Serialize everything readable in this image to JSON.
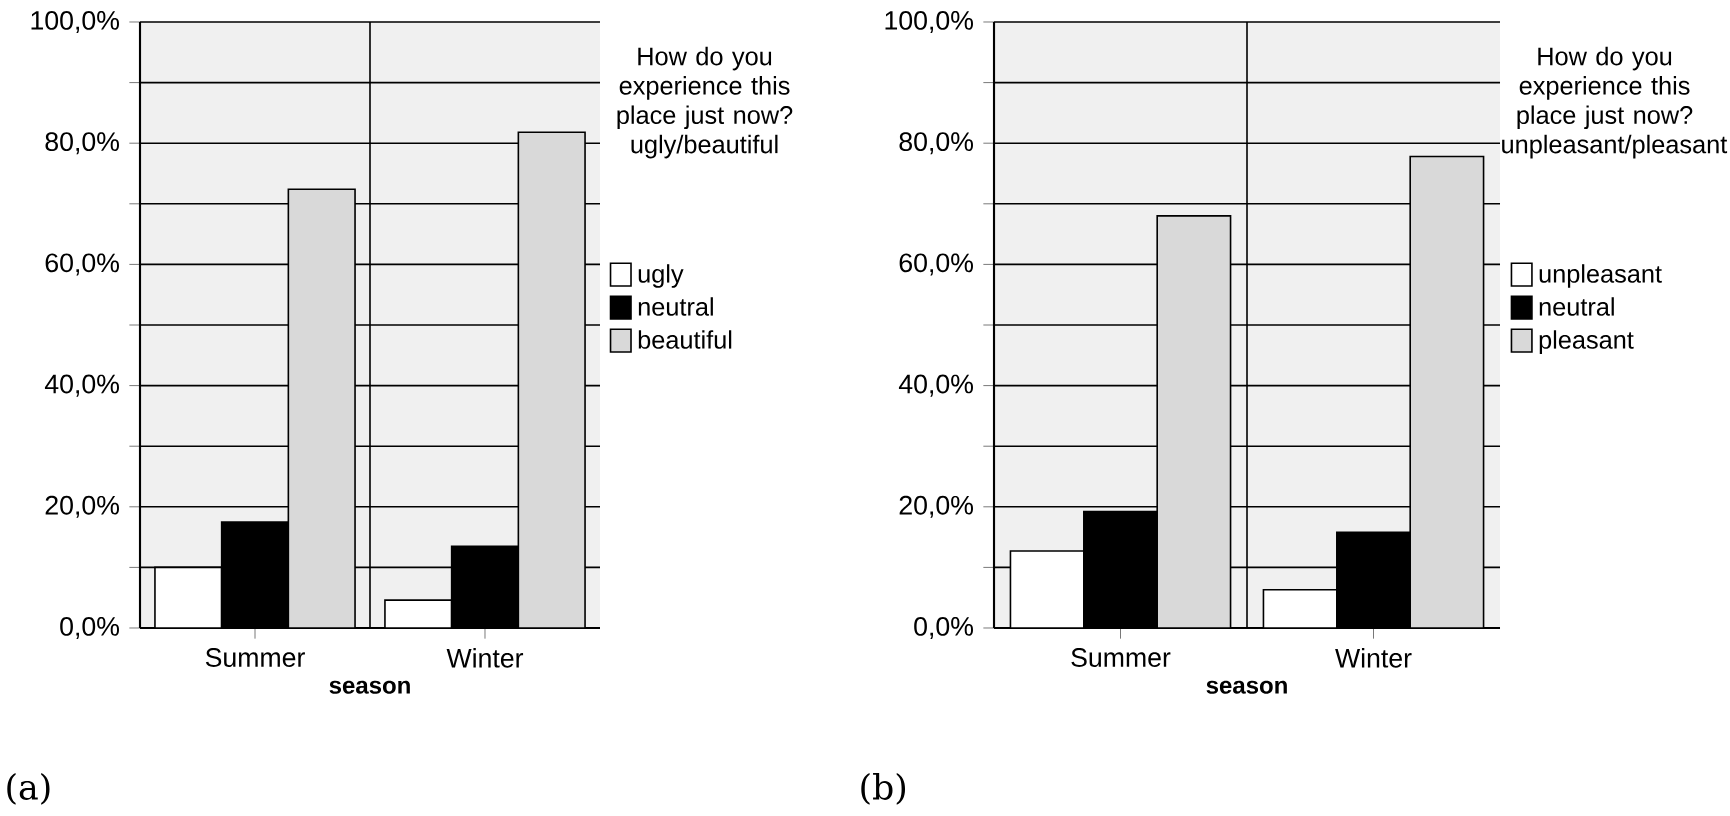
{
  "chart_data": [
    {
      "type": "bar",
      "xlabel": "season",
      "legend_title": "How do you experience this place just now? ugly/beautiful",
      "categories": [
        "Summer",
        "Winter"
      ],
      "series": [
        {
          "name": "ugly",
          "color": "#ffffff",
          "values": [
            10.0,
            4.6
          ]
        },
        {
          "name": "neutral",
          "color": "#000000",
          "values": [
            17.5,
            13.5
          ]
        },
        {
          "name": "beautiful",
          "color": "#d9d9d9",
          "values": [
            72.4,
            81.8
          ]
        }
      ],
      "ylim": [
        0,
        100
      ],
      "yticks": [
        {
          "value": 0,
          "label": "0,0%"
        },
        {
          "value": 10,
          "label": null
        },
        {
          "value": 20,
          "label": "20,0%"
        },
        {
          "value": 30,
          "label": null
        },
        {
          "value": 40,
          "label": "40,0%"
        },
        {
          "value": 50,
          "label": null
        },
        {
          "value": 60,
          "label": "60,0%"
        },
        {
          "value": 70,
          "label": null
        },
        {
          "value": 80,
          "label": "80,0%"
        },
        {
          "value": 90,
          "label": null
        },
        {
          "value": 100,
          "label": "100,0%"
        }
      ],
      "grid": true,
      "legend": "right",
      "annotations": [
        "(a)"
      ]
    },
    {
      "type": "bar",
      "xlabel": "season",
      "legend_title": "How do you experience this place just now? unpleasant/pleasant",
      "categories": [
        "Summer",
        "Winter"
      ],
      "series": [
        {
          "name": "unpleasant",
          "color": "#ffffff",
          "values": [
            12.7,
            6.3
          ]
        },
        {
          "name": "neutral",
          "color": "#000000",
          "values": [
            19.2,
            15.8
          ]
        },
        {
          "name": "pleasant",
          "color": "#d9d9d9",
          "values": [
            68.0,
            77.8
          ]
        }
      ],
      "ylim": [
        0,
        100
      ],
      "yticks": [
        {
          "value": 0,
          "label": "0,0%"
        },
        {
          "value": 10,
          "label": null
        },
        {
          "value": 20,
          "label": "20,0%"
        },
        {
          "value": 30,
          "label": null
        },
        {
          "value": 40,
          "label": "40,0%"
        },
        {
          "value": 50,
          "label": null
        },
        {
          "value": 60,
          "label": "60,0%"
        },
        {
          "value": 70,
          "label": null
        },
        {
          "value": 80,
          "label": "80,0%"
        },
        {
          "value": 90,
          "label": null
        },
        {
          "value": 100,
          "label": "100,0%"
        }
      ],
      "grid": true,
      "legend": "right",
      "annotations": [
        "(b)"
      ]
    }
  ]
}
